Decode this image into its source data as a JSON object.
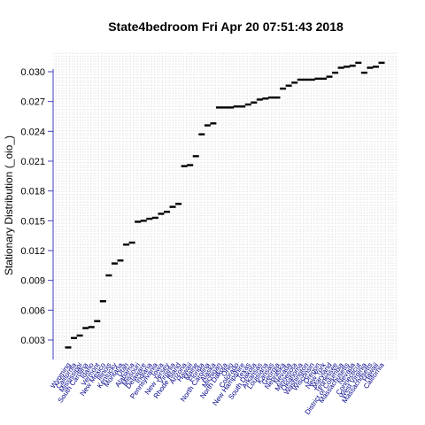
{
  "chart_data": {
    "type": "scatter",
    "title": "State4bedroom  Fri Apr 20 07:51:43 2018",
    "xlabel": "",
    "ylabel": "Stationary Distribution (_oio_)",
    "ylim": [
      0.0,
      0.0305
    ],
    "yticks": [
      "0.003",
      "0.006",
      "0.009",
      "0.012",
      "0.015",
      "0.018",
      "0.021",
      "0.024",
      "0.027",
      "0.030"
    ],
    "grid": true,
    "colors": {
      "axis": "#4040c0",
      "grid": "#c8c8c8",
      "labels": "#00008b",
      "marks": "#000000"
    },
    "categories": [
      "Wyoming",
      "California",
      "Mississippi",
      "South Carolina",
      "Idaho",
      "Vermont",
      "New Mexico",
      "Illinois",
      "Kentucky",
      "Montana",
      "Utah",
      "Alabama",
      "Missouri",
      "Delaware",
      "Indiana",
      "Pennsylvania",
      "Iowa",
      "New Jersey",
      "Virginia",
      "Rhode Island",
      "Arizona",
      "Hawaii",
      "Maine",
      "Florida",
      "North Carolina",
      "Alaska",
      "Michigan",
      "North Dakota",
      "Ohio",
      "Colorado",
      "New Hampshire",
      "Texas",
      "South Dakota",
      "Arkansas",
      "Louisiana",
      "Kansas",
      "Georgia",
      "Nebraska",
      "Nevada",
      "Minnesota",
      "Oklahoma",
      "Washington",
      "Wisconsin",
      "Oregon",
      "New York",
      "Maryland",
      "Tennessee",
      "District of Columbia",
      "Massachusetts",
      "Nevada",
      "Connecticut",
      "West Virginia",
      "Massachusetts",
      "Hawaii",
      "California"
    ],
    "values": [
      0.00225,
      0.0032,
      0.00345,
      0.0042,
      0.0043,
      0.0049,
      0.0069,
      0.0095,
      0.0107,
      0.011,
      0.0126,
      0.0128,
      0.0149,
      0.015,
      0.0152,
      0.0153,
      0.0157,
      0.0159,
      0.0164,
      0.0167,
      0.0205,
      0.0206,
      0.0215,
      0.0237,
      0.0246,
      0.0248,
      0.0264,
      0.0264,
      0.0264,
      0.0265,
      0.0265,
      0.0267,
      0.0269,
      0.0272,
      0.0273,
      0.0274,
      0.0274,
      0.0283,
      0.0286,
      0.0289,
      0.0292,
      0.0292,
      0.0292,
      0.0293,
      0.0293,
      0.0295,
      0.0299,
      0.0304,
      0.0305,
      0.0306,
      0.0309,
      0.0299,
      0.0304,
      0.0305,
      0.0309
    ]
  }
}
